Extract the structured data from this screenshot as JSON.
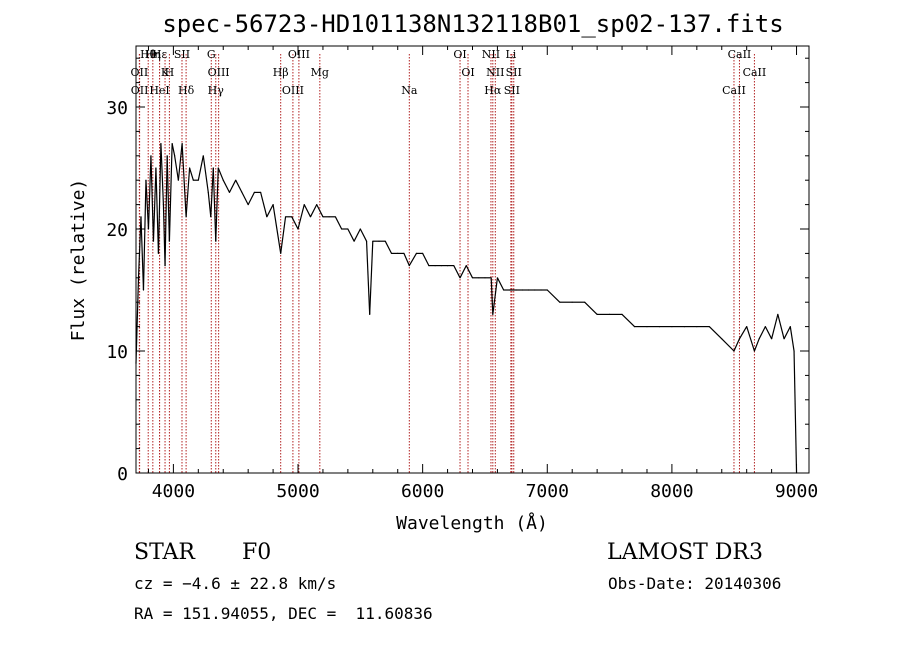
{
  "chart_data": {
    "type": "line",
    "title": "spec-56723-HD101138N132118B01_sp02-137.fits",
    "xlabel": "Wavelength (Å)",
    "ylabel": "Flux (relative)",
    "xlim": [
      3700,
      9100
    ],
    "ylim": [
      0,
      35
    ],
    "xticks": [
      4000,
      5000,
      6000,
      7000,
      8000,
      9000
    ],
    "yticks": [
      0,
      10,
      20,
      30
    ],
    "grid": false,
    "series": [
      {
        "name": "spectrum",
        "x": [
          3700,
          3720,
          3740,
          3760,
          3780,
          3800,
          3820,
          3840,
          3860,
          3880,
          3900,
          3920,
          3933,
          3950,
          3968,
          3990,
          4010,
          4040,
          4070,
          4102,
          4130,
          4160,
          4200,
          4240,
          4280,
          4300,
          4320,
          4340,
          4360,
          4400,
          4450,
          4500,
          4550,
          4600,
          4650,
          4700,
          4750,
          4800,
          4861,
          4900,
          4950,
          5000,
          5050,
          5100,
          5150,
          5200,
          5250,
          5300,
          5350,
          5400,
          5450,
          5500,
          5550,
          5575,
          5600,
          5650,
          5700,
          5750,
          5800,
          5850,
          5893,
          5950,
          6000,
          6050,
          6100,
          6150,
          6200,
          6250,
          6300,
          6350,
          6400,
          6450,
          6500,
          6550,
          6563,
          6600,
          6650,
          6700,
          6750,
          6800,
          6850,
          6900,
          6950,
          7000,
          7100,
          7200,
          7300,
          7400,
          7500,
          7600,
          7700,
          7800,
          7900,
          8000,
          8100,
          8200,
          8300,
          8400,
          8498,
          8542,
          8600,
          8662,
          8700,
          8750,
          8800,
          8850,
          8900,
          8950,
          8980,
          9000
        ],
        "values": [
          9,
          16,
          21,
          15,
          24,
          20,
          26,
          19,
          25,
          18,
          27,
          22,
          17,
          26,
          19,
          27,
          26,
          24,
          27,
          21,
          25,
          24,
          24,
          26,
          23,
          21,
          25,
          19,
          25,
          24,
          23,
          24,
          23,
          22,
          23,
          23,
          21,
          22,
          18,
          21,
          21,
          20,
          22,
          21,
          22,
          21,
          21,
          21,
          20,
          20,
          19,
          20,
          19,
          13,
          19,
          19,
          19,
          18,
          18,
          18,
          17,
          18,
          18,
          17,
          17,
          17,
          17,
          17,
          16,
          17,
          16,
          16,
          16,
          16,
          13,
          16,
          15,
          15,
          15,
          15,
          15,
          15,
          15,
          15,
          14,
          14,
          14,
          13,
          13,
          13,
          12,
          12,
          12,
          12,
          12,
          12,
          12,
          11,
          10,
          11,
          12,
          10,
          11,
          12,
          11,
          13,
          11,
          12,
          10,
          0
        ]
      }
    ],
    "annotations": [
      {
        "label": "Hθ",
        "x": 3798
      },
      {
        "label": "OII",
        "x": 3727
      },
      {
        "label": "OII",
        "x": 3729
      },
      {
        "label": "Hε",
        "x": 3889
      },
      {
        "label": "K",
        "x": 3933
      },
      {
        "label": "HeI",
        "x": 3889
      },
      {
        "label": "Hη",
        "x": 3835
      },
      {
        "label": "H",
        "x": 3968
      },
      {
        "label": "Hδ",
        "x": 4102
      },
      {
        "label": "SII",
        "x": 4069
      },
      {
        "label": "OIII",
        "x": 4363
      },
      {
        "label": "Hγ",
        "x": 4340
      },
      {
        "label": "G",
        "x": 4304
      },
      {
        "label": "Hβ",
        "x": 4861
      },
      {
        "label": "OIII",
        "x": 4959
      },
      {
        "label": "OIII",
        "x": 5007
      },
      {
        "label": "Mg",
        "x": 5175
      },
      {
        "label": "Na",
        "x": 5893
      },
      {
        "label": "OI",
        "x": 6300
      },
      {
        "label": "OI",
        "x": 6364
      },
      {
        "label": "Hα",
        "x": 6563
      },
      {
        "label": "NII",
        "x": 6548
      },
      {
        "label": "NII",
        "x": 6583
      },
      {
        "label": "SII",
        "x": 6716
      },
      {
        "label": "Li",
        "x": 6708
      },
      {
        "label": "SII",
        "x": 6731
      },
      {
        "label": "CaII",
        "x": 8498
      },
      {
        "label": "CaII",
        "x": 8542
      },
      {
        "label": "CaII",
        "x": 8662
      }
    ],
    "colors": {
      "spectrum": "#000000",
      "lines": "#b22222"
    }
  },
  "info": {
    "class": "STAR",
    "subclass": "F0",
    "survey": "LAMOST DR3",
    "cz": "cz = −4.6 ± 22.8 km/s",
    "obs_date": "Obs-Date: 20140306",
    "coords": "RA = 151.94055, DEC =  11.60836"
  }
}
